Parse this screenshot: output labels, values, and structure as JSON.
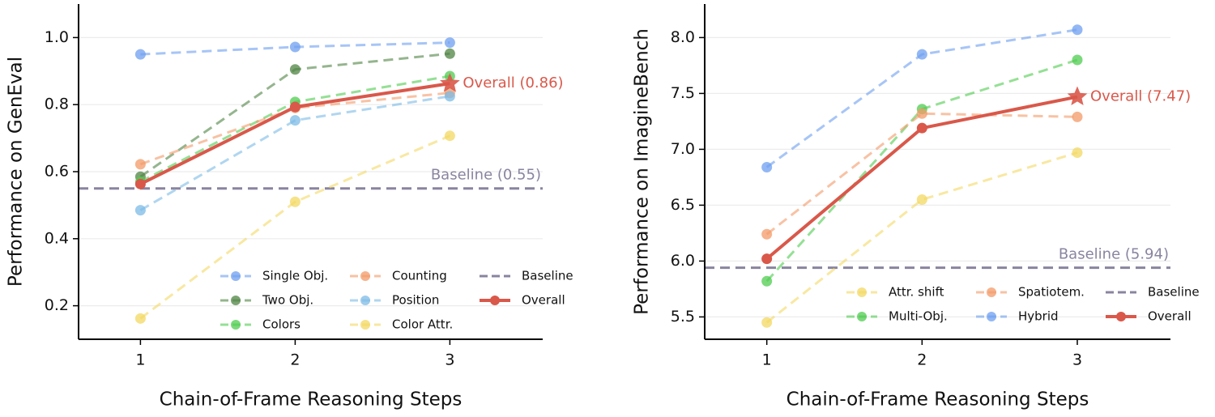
{
  "chart_data": [
    {
      "type": "line",
      "xlabel": "Chain-of-Frame Reasoning Steps",
      "ylabel": "Performance on GenEval",
      "x": [
        1,
        2,
        3
      ],
      "xlim": [
        0.6,
        3.6
      ],
      "xticks": [
        1,
        2,
        3
      ],
      "ylim": [
        0.1,
        1.1
      ],
      "yticks": [
        0.2,
        0.4,
        0.6,
        0.8,
        {
          "value": 1,
          "label": "1.0"
        }
      ],
      "grid": true,
      "legend_ncol": 3,
      "series": [
        {
          "name": "Single Obj.",
          "color": "#6d9ff0",
          "dashed": true,
          "values": [
            0.95,
            0.972,
            0.985
          ]
        },
        {
          "name": "Two Obj.",
          "color": "#4f8443",
          "dashed": true,
          "values": [
            0.585,
            0.905,
            0.952
          ]
        },
        {
          "name": "Colors",
          "color": "#4fcc4f",
          "dashed": true,
          "values": [
            0.57,
            0.808,
            0.885
          ]
        },
        {
          "name": "Counting",
          "color": "#f39a67",
          "dashed": true,
          "values": [
            0.622,
            0.79,
            0.835
          ]
        },
        {
          "name": "Position",
          "color": "#7cbbe6",
          "dashed": true,
          "values": [
            0.485,
            0.753,
            0.825
          ]
        },
        {
          "name": "Color Attr.",
          "color": "#f3d862",
          "dashed": true,
          "values": [
            0.162,
            0.51,
            0.707
          ]
        },
        {
          "name": "Overall",
          "color": "#d9584a",
          "dashed": false,
          "emphasis": true,
          "label": "Overall (0.86)",
          "values": [
            0.563,
            0.793,
            0.863
          ]
        }
      ],
      "baseline": {
        "name": "Baseline",
        "color": "#8a84a0",
        "value": 0.55,
        "label": "Baseline (0.55)"
      }
    },
    {
      "type": "line",
      "xlabel": "Chain-of-Frame Reasoning Steps",
      "ylabel": "Performance on ImagineBench",
      "x": [
        1,
        2,
        3
      ],
      "xlim": [
        0.6,
        3.6
      ],
      "xticks": [
        1,
        2,
        3
      ],
      "ylim": [
        5.3,
        8.3
      ],
      "yticks": [
        5.5,
        {
          "value": 6,
          "label": "6.0"
        },
        6.5,
        {
          "value": 7,
          "label": "7.0"
        },
        7.5,
        {
          "value": 8,
          "label": "8.0"
        }
      ],
      "grid": true,
      "legend_ncol": 3,
      "series": [
        {
          "name": "Attr. shift",
          "color": "#f3d862",
          "dashed": true,
          "values": [
            5.45,
            6.55,
            6.97
          ]
        },
        {
          "name": "Multi-Obj.",
          "color": "#4fcc4f",
          "dashed": true,
          "values": [
            5.82,
            7.36,
            7.8
          ]
        },
        {
          "name": "Spatiotem.",
          "color": "#f39a67",
          "dashed": true,
          "values": [
            6.24,
            7.32,
            7.29
          ]
        },
        {
          "name": "Hybrid",
          "color": "#6d9ff0",
          "dashed": true,
          "values": [
            6.84,
            7.85,
            8.07
          ]
        },
        {
          "name": "Overall",
          "color": "#d9584a",
          "dashed": false,
          "emphasis": true,
          "label": "Overall (7.47)",
          "values": [
            6.02,
            7.19,
            7.47
          ]
        }
      ],
      "baseline": {
        "name": "Baseline",
        "color": "#8a84a0",
        "value": 5.94,
        "label": "Baseline (5.94)"
      }
    }
  ]
}
